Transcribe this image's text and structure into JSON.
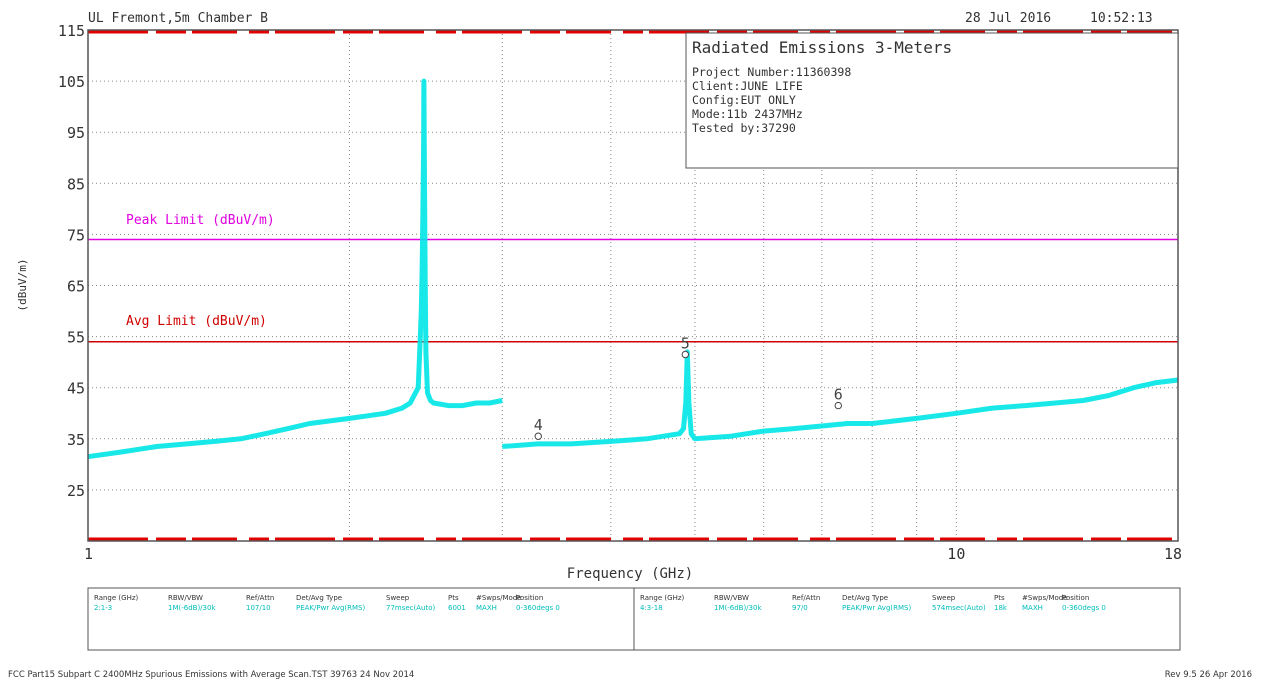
{
  "header": {
    "site": "UL Fremont,5m Chamber B",
    "date": "28 Jul 2016",
    "time": "10:52:13"
  },
  "info_box": {
    "title": "Radiated Emissions 3-Meters",
    "lines": [
      "Project Number:11360398",
      "Client:JUNE LIFE",
      "Config:EUT ONLY",
      "Mode:11b 2437MHz",
      "Tested by:37290"
    ]
  },
  "footer": {
    "left": "FCC Part15 Subpart C 2400MHz Spurious Emissions with Average Scan.TST 39763 24 Nov 2014",
    "right": "Rev 9.5 26 Apr 2016"
  },
  "settings_table": {
    "headers": [
      "Range (GHz)",
      "RBW/VBW",
      "Ref/Attn",
      "Det/Avg Type",
      "Sweep",
      "Pts",
      "#Swps/Mode",
      "Position"
    ],
    "rows": [
      [
        "2:1-3",
        "1M(-6dB)/30k",
        "107/10",
        "PEAK/Pwr Avg(RMS)",
        "77msec(Auto)",
        "6001",
        "MAXH",
        "0-360degs 0"
      ],
      [
        "4:3-18",
        "1M(-6dB)/30k",
        "97/0",
        "PEAK/Pwr Avg(RMS)",
        "574msec(Auto)",
        "18k",
        "MAXH",
        "0-360degs 0"
      ]
    ]
  },
  "colors": {
    "trace": "#00e5e5",
    "peak_limit": "#e000e0",
    "avg_limit": "#d00000",
    "frame": "#555555",
    "grid": "#888888",
    "band_marks": "#e00000"
  },
  "chart_data": {
    "type": "line",
    "x_scale": "log",
    "xlim": [
      1,
      18
    ],
    "ylim": [
      15,
      115
    ],
    "xlabel": "Frequency (GHz)",
    "ylabel": "(dBuV/m)",
    "y_ticks": [
      115,
      105,
      95,
      85,
      75,
      65,
      55,
      45,
      35,
      25
    ],
    "x_tick_labels": [
      {
        "x": 1,
        "label": "1"
      },
      {
        "x": 10,
        "label": "10"
      },
      {
        "x": 18,
        "label": "18"
      }
    ],
    "x_grid": [
      2,
      3,
      4,
      5,
      6,
      7,
      8,
      9,
      10
    ],
    "grid": true,
    "limits": [
      {
        "name": "Peak Limit (dBuV/m)",
        "y": 74,
        "color": "peak_limit"
      },
      {
        "name": "Avg Limit (dBuV/m)",
        "y": 54,
        "color": "avg_limit"
      }
    ],
    "series": [
      {
        "segment": "1-3 GHz",
        "x": [
          1.0,
          1.1,
          1.2,
          1.3,
          1.4,
          1.5,
          1.6,
          1.7,
          1.8,
          1.9,
          2.0,
          2.1,
          2.2,
          2.3,
          2.35,
          2.4,
          2.41,
          2.42,
          2.425,
          2.43,
          2.435,
          2.437,
          2.44,
          2.445,
          2.45,
          2.46,
          2.48,
          2.5,
          2.6,
          2.7,
          2.8,
          2.9,
          3.0
        ],
        "y": [
          31.5,
          32.5,
          33.5,
          34,
          34.5,
          35,
          36,
          37,
          38,
          38.5,
          39,
          39.5,
          40,
          41,
          42,
          45,
          52,
          60,
          68,
          78,
          92,
          105,
          88,
          66,
          52,
          44,
          42.5,
          42,
          41.5,
          41.5,
          42,
          42,
          42.5
        ]
      },
      {
        "segment": "3-18 GHz",
        "x": [
          3.0,
          3.3,
          3.6,
          4.0,
          4.4,
          4.8,
          4.85,
          4.88,
          4.9,
          4.92,
          4.95,
          5.0,
          5.5,
          6.0,
          6.5,
          7.0,
          7.5,
          8.0,
          9.0,
          10.0,
          11.0,
          12.0,
          13.0,
          14.0,
          15.0,
          16.0,
          17.0,
          18.0
        ],
        "y": [
          33.5,
          34,
          34,
          34.5,
          35,
          36,
          37,
          42,
          52,
          42,
          36,
          35,
          35.5,
          36.5,
          37,
          37.5,
          38,
          38,
          39,
          40,
          41,
          41.5,
          42,
          42.5,
          43.5,
          45,
          46,
          46.5
        ]
      }
    ],
    "markers": [
      {
        "label": "4",
        "x": 3.3,
        "y": 35.5
      },
      {
        "label": "5",
        "x": 4.874,
        "y": 51.5
      },
      {
        "label": "6",
        "x": 7.312,
        "y": 41.5
      }
    ]
  }
}
